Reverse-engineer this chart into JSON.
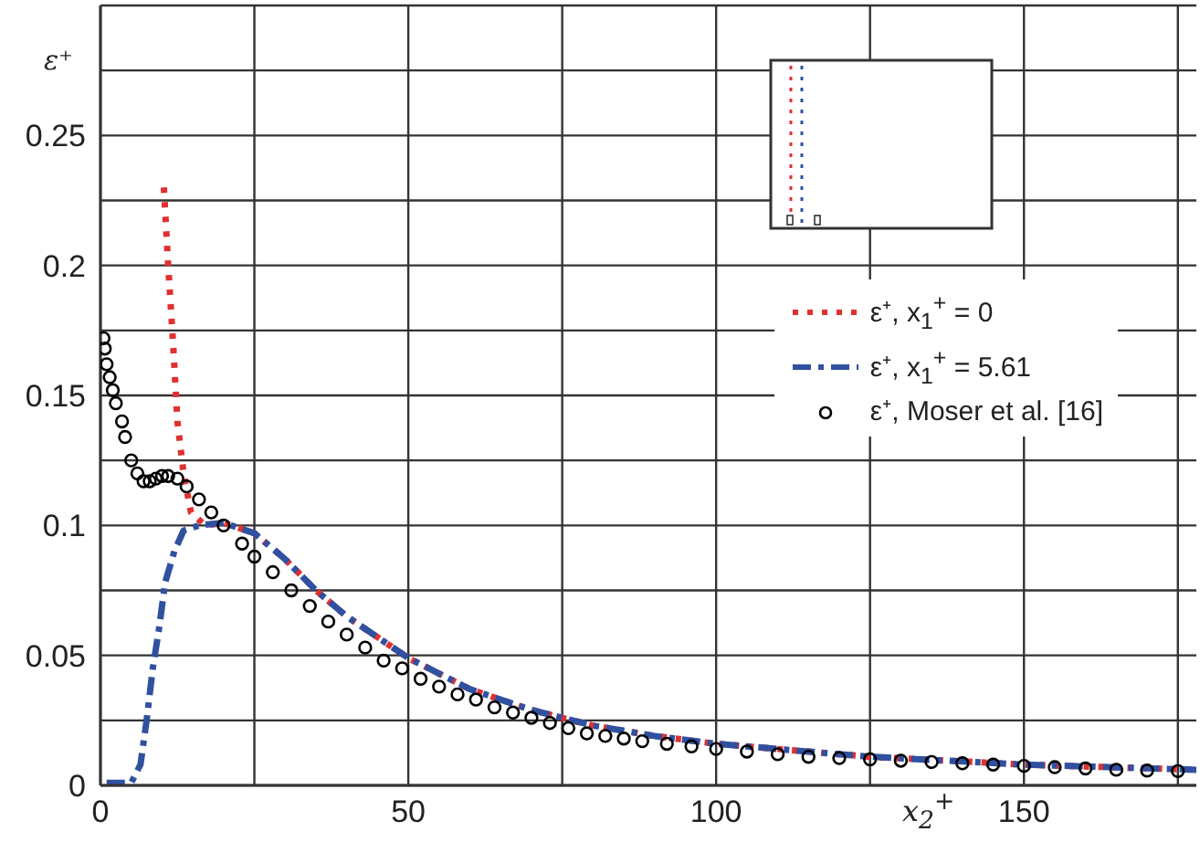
{
  "chart_data": {
    "type": "line",
    "xlabel": "x$_{2}$$^{+}$",
    "ylabel": "ε⁺",
    "xlim": [
      0,
      178
    ],
    "ylim": [
      0,
      0.3
    ],
    "xticks": [
      0,
      {
        "value": 25,
        "label": null
      },
      50,
      {
        "value": 75,
        "label": null
      },
      100,
      {
        "value": 125,
        "label": null
      },
      150,
      {
        "value": 175,
        "label": null
      }
    ],
    "yticks": [
      0,
      {
        "value": 0.025,
        "label": null
      },
      0.05,
      {
        "value": 0.075,
        "label": null
      },
      0.1,
      {
        "value": 0.125,
        "label": null
      },
      0.15,
      {
        "value": 0.175,
        "label": null
      },
      0.2,
      {
        "value": 0.225,
        "label": null
      },
      0.25,
      {
        "value": 0.275,
        "label": null
      },
      {
        "value": 0.3,
        "label": null
      }
    ],
    "grid": true,
    "legend": "right",
    "series": [
      {
        "name": "ε⁺, x$_{1}$$^{+}$ = 0",
        "color": "#e03030",
        "line_style": "dotted",
        "marker": "none",
        "x": [
          10.3,
          11,
          11.8,
          12.5,
          13.5,
          14.7,
          17,
          20,
          25,
          30,
          35,
          40,
          50,
          60,
          70,
          80,
          90,
          100,
          125,
          150,
          178
        ],
        "values": [
          0.23,
          0.2,
          0.17,
          0.14,
          0.12,
          0.105,
          0.1,
          0.101,
          0.097,
          0.087,
          0.075,
          0.065,
          0.049,
          0.037,
          0.029,
          0.023,
          0.019,
          0.016,
          0.011,
          0.008,
          0.006
        ]
      },
      {
        "name": "ε⁺, x$_{1}$$^{+}$ = 5.61",
        "color": "#3050a0",
        "line_style": "dashed",
        "marker": "none",
        "x": [
          1,
          5,
          6.5,
          7.5,
          8.5,
          9.5,
          10.5,
          12,
          13.5,
          16,
          20,
          25,
          30,
          35,
          40,
          50,
          60,
          70,
          80,
          90,
          100,
          125,
          150,
          178
        ],
        "values": [
          0.001,
          0.001,
          0.008,
          0.025,
          0.045,
          0.06,
          0.078,
          0.09,
          0.098,
          0.1,
          0.101,
          0.097,
          0.087,
          0.075,
          0.065,
          0.049,
          0.037,
          0.029,
          0.023,
          0.019,
          0.016,
          0.011,
          0.008,
          0.006
        ]
      },
      {
        "name": "ε⁺, Moser et al. [16]",
        "type": "scatter",
        "color": "#000000",
        "marker": "circle",
        "x": [
          0.5,
          0.7,
          1,
          1.5,
          2,
          2.5,
          3.5,
          4,
          5,
          6,
          7,
          8,
          9,
          10,
          11,
          12.5,
          14,
          16,
          18,
          20,
          23,
          25,
          28,
          31,
          34,
          37,
          40,
          43,
          46,
          49,
          52,
          55,
          58,
          61,
          64,
          67,
          70,
          73,
          76,
          79,
          82,
          85,
          88,
          92,
          96,
          100,
          105,
          110,
          115,
          120,
          125,
          130,
          135,
          140,
          145,
          150,
          155,
          160,
          165,
          170,
          175
        ],
        "values": [
          0.172,
          0.168,
          0.162,
          0.157,
          0.152,
          0.147,
          0.14,
          0.134,
          0.125,
          0.12,
          0.117,
          0.117,
          0.118,
          0.119,
          0.119,
          0.118,
          0.115,
          0.11,
          0.105,
          0.1,
          0.093,
          0.088,
          0.082,
          0.075,
          0.069,
          0.063,
          0.058,
          0.053,
          0.048,
          0.045,
          0.041,
          0.038,
          0.035,
          0.033,
          0.03,
          0.028,
          0.026,
          0.024,
          0.022,
          0.02,
          0.019,
          0.018,
          0.017,
          0.016,
          0.015,
          0.014,
          0.013,
          0.012,
          0.011,
          0.0105,
          0.01,
          0.0095,
          0.009,
          0.0085,
          0.008,
          0.0075,
          0.007,
          0.0065,
          0.006,
          0.0057,
          0.0055
        ]
      }
    ]
  }
}
